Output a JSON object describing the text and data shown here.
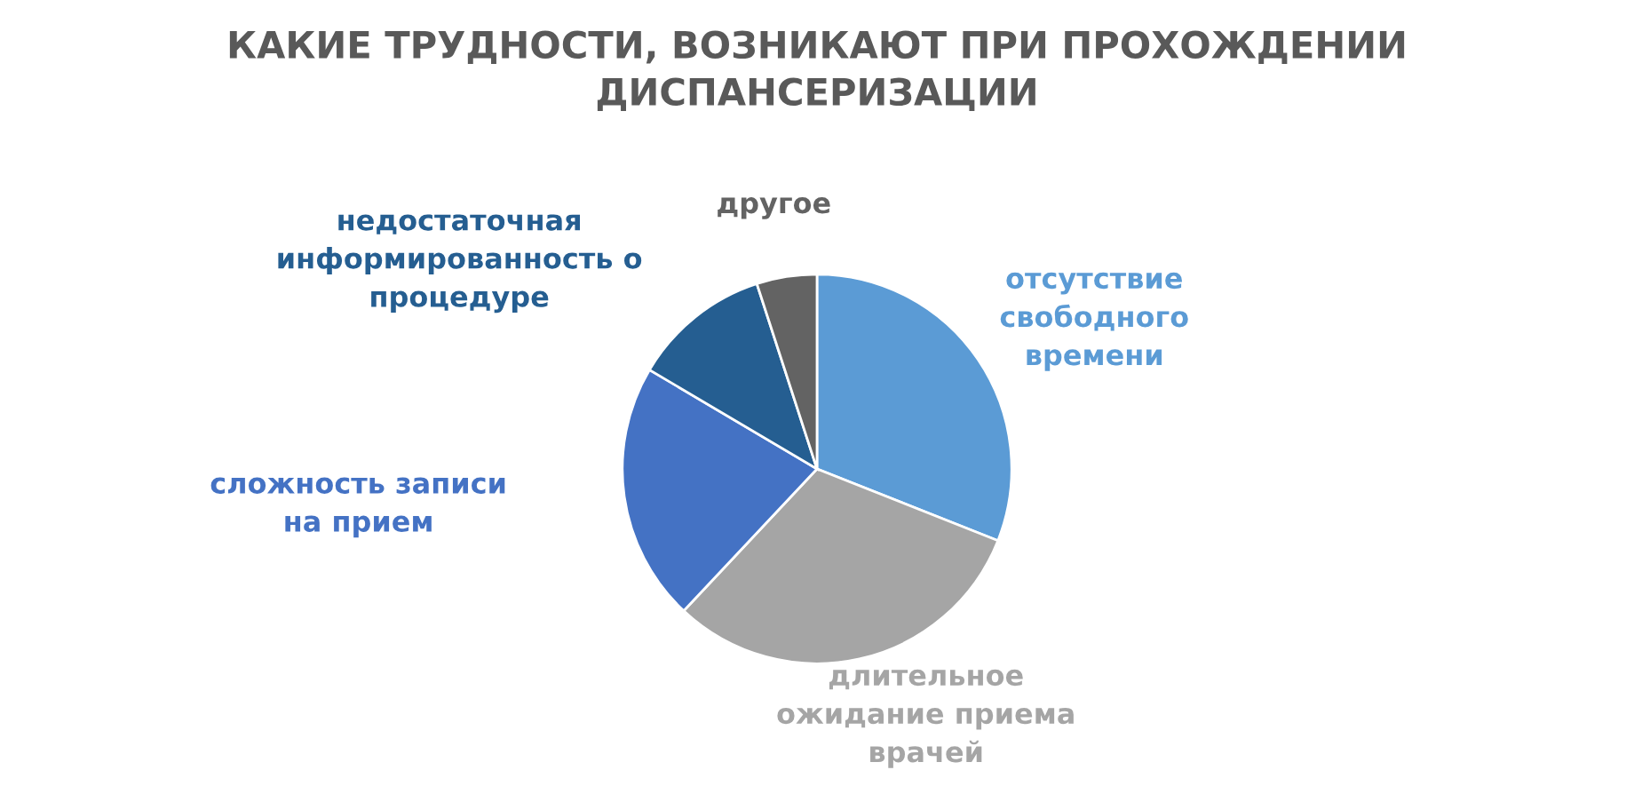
{
  "chart_data": {
    "type": "pie",
    "title": "КАКИЕ ТРУДНОСТИ, ВОЗНИКАЮТ ПРИ ПРОХОЖДЕНИИ\nДИСПАНСЕРИЗАЦИИ",
    "categories": [
      "отсутствие\nсвободного\nвремени",
      "длительное\nожидание приема\nврачей",
      "сложность записи\nна прием",
      "недостаточная\nинформированность о\nпроцедуре",
      "другое"
    ],
    "values": [
      31,
      31,
      21.5,
      11.5,
      5
    ],
    "colors": [
      "#5b9bd5",
      "#a5a5a5",
      "#4472c4",
      "#255e91",
      "#636363"
    ],
    "legend": false
  }
}
